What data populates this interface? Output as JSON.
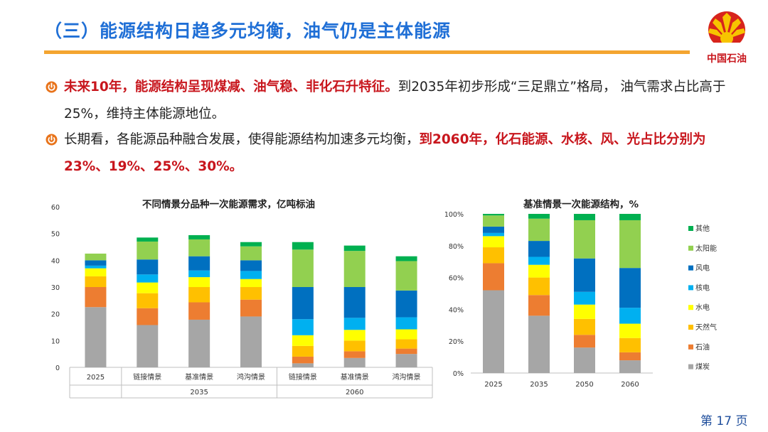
{
  "title": "（三）能源结构日趋多元均衡，油气仍是主体能源",
  "logo": {
    "text": "中国石油",
    "colors": {
      "red": "#d7241c",
      "yellow": "#f7c400"
    }
  },
  "bullets": [
    {
      "highlight": "未来10年，能源结构呈现煤减、油气稳、非化石升特征。",
      "text": "到2035年初步形成“三足鼎立”格局，  油气需求占比高于25%，维持主体能源地位。"
    },
    {
      "text": "长期看，各能源品种融合发展，使得能源结构加速多元均衡，",
      "highlight": "到2060年，化石能源、水核、风、光占比分别为23%、19%、25%、30%。"
    }
  ],
  "chart_data": [
    {
      "type": "bar",
      "stacked": true,
      "title": "不同情景分品种一次能源需求，亿吨标油",
      "ylim": [
        0,
        60
      ],
      "yticks": [
        0,
        10,
        20,
        30,
        40,
        50,
        60
      ],
      "categories": [
        "2025",
        "链接情景",
        "基准情景",
        "鸿沟情景",
        "链接情景",
        "基准情景",
        "鸿沟情景"
      ],
      "groups": [
        {
          "label": "",
          "from": 0,
          "to": 0
        },
        {
          "label": "2035",
          "from": 1,
          "to": 3
        },
        {
          "label": "2060",
          "from": 4,
          "to": 6
        }
      ],
      "series": [
        {
          "name": "煤炭",
          "color": "#a6a6a6",
          "values": [
            22.5,
            15.8,
            17.8,
            19.0,
            1.5,
            3.5,
            5.0
          ]
        },
        {
          "name": "石油",
          "color": "#ed7d31",
          "values": [
            7.5,
            6.3,
            6.5,
            6.3,
            2.5,
            2.5,
            2.0
          ]
        },
        {
          "name": "天然气",
          "color": "#ffc000",
          "values": [
            4.0,
            5.6,
            5.7,
            4.7,
            4.0,
            4.0,
            3.5
          ]
        },
        {
          "name": "水电",
          "color": "#ffff00",
          "values": [
            3.0,
            4.0,
            3.7,
            3.0,
            4.0,
            4.0,
            3.7
          ]
        },
        {
          "name": "核电",
          "color": "#00b0f0",
          "values": [
            1.0,
            3.0,
            2.5,
            3.0,
            6.0,
            4.5,
            4.5
          ]
        },
        {
          "name": "风电",
          "color": "#0070c0",
          "values": [
            2.0,
            5.6,
            5.3,
            4.0,
            12.0,
            11.5,
            10.0
          ]
        },
        {
          "name": "太阳能",
          "color": "#92d050",
          "values": [
            2.5,
            6.7,
            6.3,
            5.2,
            14.0,
            13.5,
            11.0
          ]
        },
        {
          "name": "其他",
          "color": "#00b050",
          "values": [
            0,
            1.5,
            1.6,
            1.6,
            2.8,
            2.0,
            1.8
          ]
        }
      ]
    },
    {
      "type": "bar",
      "stacked": true,
      "percent": true,
      "title": "基准情景一次能源结构，%",
      "ylim": [
        0,
        100
      ],
      "yticks": [
        "0%",
        "20%",
        "40%",
        "60%",
        "80%",
        "100%"
      ],
      "categories": [
        "2025",
        "2035",
        "2050",
        "2060"
      ],
      "legend_position": "right",
      "series": [
        {
          "name": "煤炭",
          "color": "#a6a6a6",
          "values": [
            52,
            36,
            16,
            8
          ]
        },
        {
          "name": "石油",
          "color": "#ed7d31",
          "values": [
            17,
            13,
            8,
            5
          ]
        },
        {
          "name": "天然气",
          "color": "#ffc000",
          "values": [
            10,
            11,
            10,
            9
          ]
        },
        {
          "name": "水电",
          "color": "#ffff00",
          "values": [
            7,
            8,
            9,
            9
          ]
        },
        {
          "name": "核电",
          "color": "#00b0f0",
          "values": [
            2,
            5,
            8,
            10
          ]
        },
        {
          "name": "风电",
          "color": "#0070c0",
          "values": [
            4,
            10,
            21,
            25
          ]
        },
        {
          "name": "太阳能",
          "color": "#92d050",
          "values": [
            7,
            14,
            24,
            30
          ]
        },
        {
          "name": "其他",
          "color": "#00b050",
          "values": [
            1,
            3,
            4,
            4
          ]
        }
      ]
    }
  ],
  "page": {
    "prefix": "第",
    "number": "17",
    "suffix": "页"
  }
}
